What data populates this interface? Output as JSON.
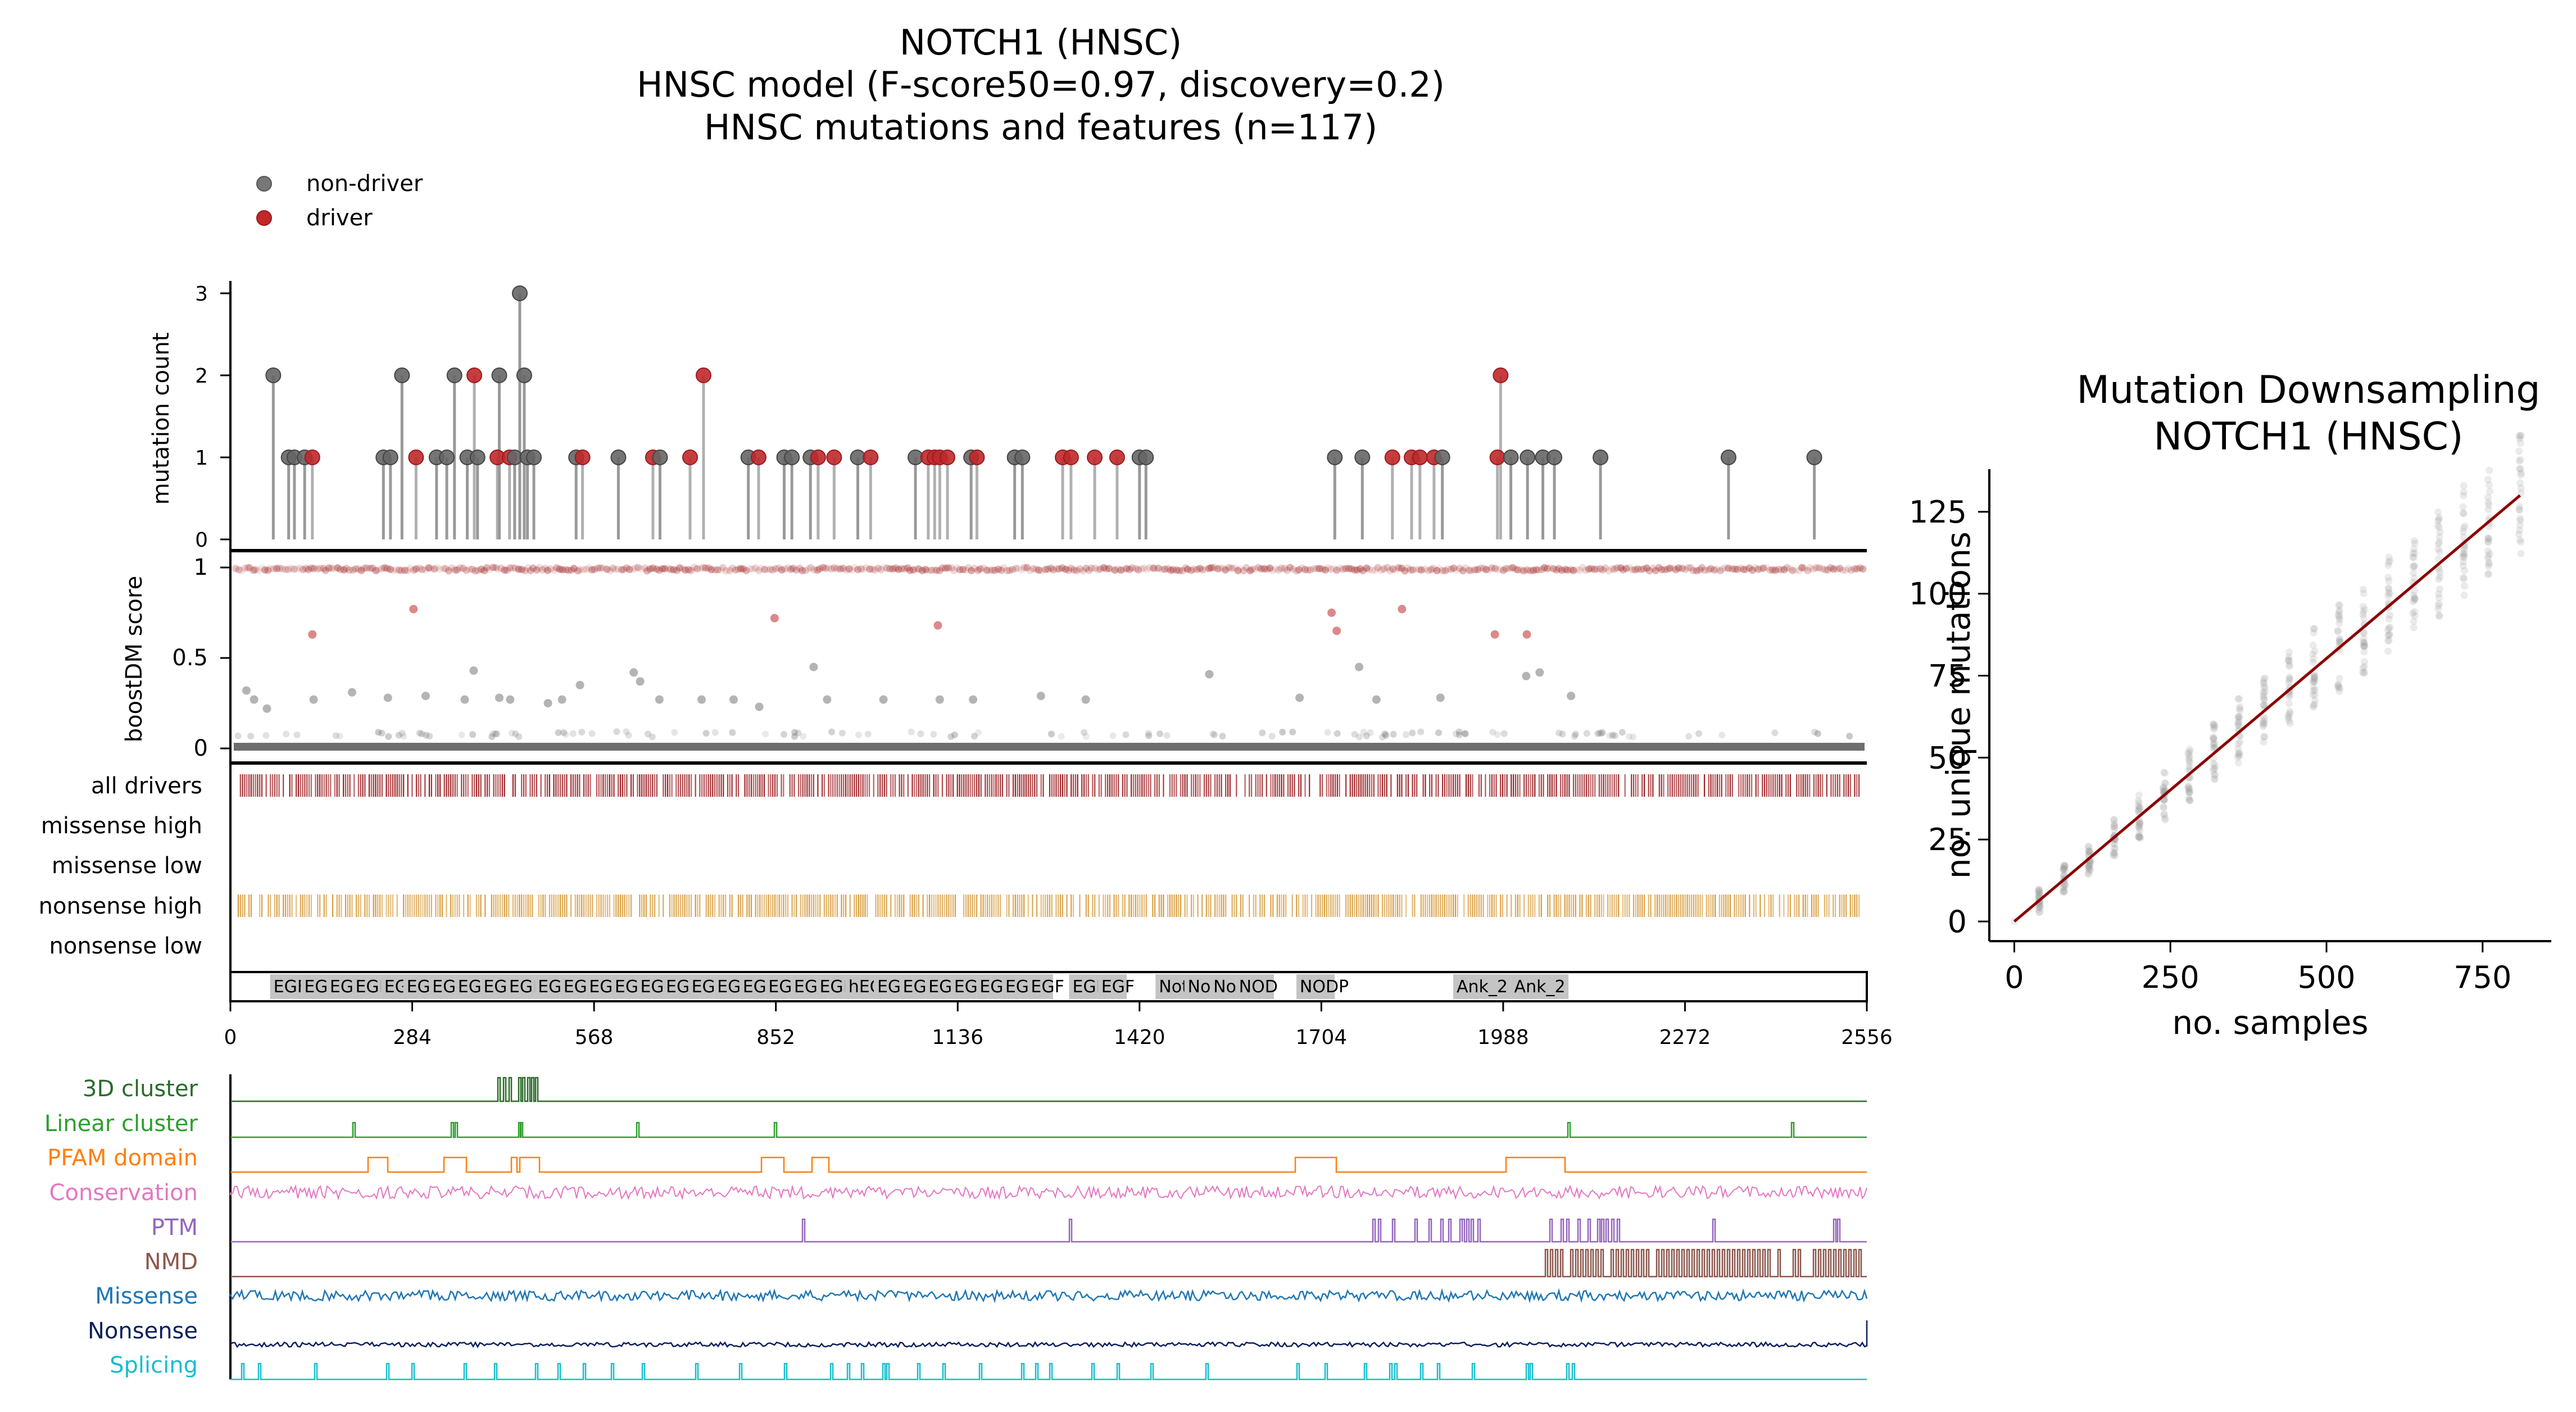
{
  "titles": {
    "line1": "NOTCH1 (HNSC)",
    "line2": "HNSC model (F-score50=0.97, discovery=0.2)",
    "line3": "HNSC mutations and features (n=117)"
  },
  "legend": [
    {
      "label": "non-driver",
      "color": "#777777"
    },
    {
      "label": "driver",
      "color": "#c0282a"
    }
  ],
  "colors": {
    "driver": "#c0282a",
    "nondriver": "#666666",
    "stem_driver": "#b0b0b0",
    "score_driver": "#a83232",
    "score_base": "#555555",
    "all_drivers": "#9b1b1e",
    "nonsense_high": "#d69a3a",
    "dom_fill": "#c4c4c4"
  },
  "chart_data": [
    {
      "type": "scatter",
      "name": "lollipop",
      "ylabel": "mutation count",
      "yticks": [
        0,
        1,
        2,
        3
      ],
      "ylim": [
        0,
        3
      ],
      "xlim": [
        0,
        2556
      ],
      "points": [
        {
          "x": 67,
          "y": 2,
          "d": 0
        },
        {
          "x": 91,
          "y": 1,
          "d": 0
        },
        {
          "x": 100,
          "y": 1,
          "d": 0
        },
        {
          "x": 116,
          "y": 1,
          "d": 0
        },
        {
          "x": 128,
          "y": 1,
          "d": 1
        },
        {
          "x": 239,
          "y": 1,
          "d": 0
        },
        {
          "x": 250,
          "y": 1,
          "d": 0
        },
        {
          "x": 268,
          "y": 2,
          "d": 0
        },
        {
          "x": 290,
          "y": 1,
          "d": 1
        },
        {
          "x": 322,
          "y": 1,
          "d": 0
        },
        {
          "x": 338,
          "y": 1,
          "d": 0
        },
        {
          "x": 350,
          "y": 2,
          "d": 0
        },
        {
          "x": 370,
          "y": 1,
          "d": 0
        },
        {
          "x": 381,
          "y": 2,
          "d": 1
        },
        {
          "x": 386,
          "y": 1,
          "d": 0
        },
        {
          "x": 417,
          "y": 1,
          "d": 1
        },
        {
          "x": 420,
          "y": 2,
          "d": 0
        },
        {
          "x": 436,
          "y": 1,
          "d": 1
        },
        {
          "x": 444,
          "y": 1,
          "d": 0
        },
        {
          "x": 452,
          "y": 3,
          "d": 0
        },
        {
          "x": 459,
          "y": 2,
          "d": 0
        },
        {
          "x": 464,
          "y": 1,
          "d": 0
        },
        {
          "x": 474,
          "y": 1,
          "d": 0
        },
        {
          "x": 540,
          "y": 1,
          "d": 0
        },
        {
          "x": 550,
          "y": 1,
          "d": 1
        },
        {
          "x": 606,
          "y": 1,
          "d": 0
        },
        {
          "x": 660,
          "y": 1,
          "d": 1
        },
        {
          "x": 671,
          "y": 1,
          "d": 0
        },
        {
          "x": 718,
          "y": 1,
          "d": 1
        },
        {
          "x": 739,
          "y": 2,
          "d": 1
        },
        {
          "x": 809,
          "y": 1,
          "d": 0
        },
        {
          "x": 825,
          "y": 1,
          "d": 1
        },
        {
          "x": 865,
          "y": 1,
          "d": 0
        },
        {
          "x": 877,
          "y": 1,
          "d": 0
        },
        {
          "x": 906,
          "y": 1,
          "d": 0
        },
        {
          "x": 918,
          "y": 1,
          "d": 1
        },
        {
          "x": 943,
          "y": 1,
          "d": 1
        },
        {
          "x": 980,
          "y": 1,
          "d": 0
        },
        {
          "x": 1000,
          "y": 1,
          "d": 1
        },
        {
          "x": 1070,
          "y": 1,
          "d": 0
        },
        {
          "x": 1090,
          "y": 1,
          "d": 1
        },
        {
          "x": 1100,
          "y": 1,
          "d": 1
        },
        {
          "x": 1108,
          "y": 1,
          "d": 1
        },
        {
          "x": 1120,
          "y": 1,
          "d": 1
        },
        {
          "x": 1157,
          "y": 1,
          "d": 0
        },
        {
          "x": 1166,
          "y": 1,
          "d": 1
        },
        {
          "x": 1225,
          "y": 1,
          "d": 0
        },
        {
          "x": 1237,
          "y": 1,
          "d": 0
        },
        {
          "x": 1300,
          "y": 1,
          "d": 1
        },
        {
          "x": 1313,
          "y": 1,
          "d": 1
        },
        {
          "x": 1350,
          "y": 1,
          "d": 1
        },
        {
          "x": 1385,
          "y": 1,
          "d": 1
        },
        {
          "x": 1420,
          "y": 1,
          "d": 0
        },
        {
          "x": 1430,
          "y": 1,
          "d": 0
        },
        {
          "x": 1725,
          "y": 1,
          "d": 0
        },
        {
          "x": 1768,
          "y": 1,
          "d": 0
        },
        {
          "x": 1815,
          "y": 1,
          "d": 1
        },
        {
          "x": 1845,
          "y": 1,
          "d": 1
        },
        {
          "x": 1858,
          "y": 1,
          "d": 1
        },
        {
          "x": 1880,
          "y": 1,
          "d": 1
        },
        {
          "x": 1893,
          "y": 1,
          "d": 0
        },
        {
          "x": 1979,
          "y": 1,
          "d": 1
        },
        {
          "x": 1984,
          "y": 2,
          "d": 1
        },
        {
          "x": 2000,
          "y": 1,
          "d": 0
        },
        {
          "x": 2026,
          "y": 1,
          "d": 0
        },
        {
          "x": 2050,
          "y": 1,
          "d": 0
        },
        {
          "x": 2068,
          "y": 1,
          "d": 0
        },
        {
          "x": 2140,
          "y": 1,
          "d": 0
        },
        {
          "x": 2340,
          "y": 1,
          "d": 0
        },
        {
          "x": 2474,
          "y": 1,
          "d": 0
        }
      ]
    },
    {
      "type": "scatter",
      "name": "boostDM",
      "ylabel": "boostDM score",
      "ylim": [
        0,
        1
      ],
      "yticks": [
        0,
        0.5,
        1
      ],
      "ytick_labels": [
        "0",
        "0.5",
        "1"
      ],
      "highlighted": [
        {
          "x": 128,
          "y": 0.63,
          "d": 1
        },
        {
          "x": 286,
          "y": 0.77,
          "d": 1
        },
        {
          "x": 850,
          "y": 0.72,
          "d": 1
        },
        {
          "x": 1105,
          "y": 0.68,
          "d": 1
        },
        {
          "x": 1720,
          "y": 0.75,
          "d": 1
        },
        {
          "x": 1728,
          "y": 0.65,
          "d": 1
        },
        {
          "x": 1830,
          "y": 0.77,
          "d": 1
        },
        {
          "x": 1975,
          "y": 0.63,
          "d": 1
        },
        {
          "x": 2025,
          "y": 0.63,
          "d": 1
        },
        {
          "x": 25,
          "y": 0.32,
          "d": 0
        },
        {
          "x": 37,
          "y": 0.27,
          "d": 0
        },
        {
          "x": 57,
          "y": 0.22,
          "d": 0
        },
        {
          "x": 130,
          "y": 0.27,
          "d": 0
        },
        {
          "x": 190,
          "y": 0.31,
          "d": 0
        },
        {
          "x": 246,
          "y": 0.28,
          "d": 0
        },
        {
          "x": 305,
          "y": 0.29,
          "d": 0
        },
        {
          "x": 366,
          "y": 0.27,
          "d": 0
        },
        {
          "x": 380,
          "y": 0.43,
          "d": 0
        },
        {
          "x": 420,
          "y": 0.28,
          "d": 0
        },
        {
          "x": 437,
          "y": 0.27,
          "d": 0
        },
        {
          "x": 496,
          "y": 0.25,
          "d": 0
        },
        {
          "x": 518,
          "y": 0.27,
          "d": 0
        },
        {
          "x": 546,
          "y": 0.35,
          "d": 0
        },
        {
          "x": 630,
          "y": 0.42,
          "d": 0
        },
        {
          "x": 640,
          "y": 0.37,
          "d": 0
        },
        {
          "x": 670,
          "y": 0.27,
          "d": 0
        },
        {
          "x": 736,
          "y": 0.27,
          "d": 0
        },
        {
          "x": 786,
          "y": 0.27,
          "d": 0
        },
        {
          "x": 826,
          "y": 0.23,
          "d": 0
        },
        {
          "x": 911,
          "y": 0.45,
          "d": 0
        },
        {
          "x": 932,
          "y": 0.27,
          "d": 0
        },
        {
          "x": 1020,
          "y": 0.27,
          "d": 0
        },
        {
          "x": 1108,
          "y": 0.27,
          "d": 0
        },
        {
          "x": 1160,
          "y": 0.27,
          "d": 0
        },
        {
          "x": 1266,
          "y": 0.29,
          "d": 0
        },
        {
          "x": 1336,
          "y": 0.27,
          "d": 0
        },
        {
          "x": 1529,
          "y": 0.41,
          "d": 0
        },
        {
          "x": 1670,
          "y": 0.28,
          "d": 0
        },
        {
          "x": 1763,
          "y": 0.45,
          "d": 0
        },
        {
          "x": 1790,
          "y": 0.27,
          "d": 0
        },
        {
          "x": 1890,
          "y": 0.28,
          "d": 0
        },
        {
          "x": 2024,
          "y": 0.4,
          "d": 0
        },
        {
          "x": 2045,
          "y": 0.42,
          "d": 0
        },
        {
          "x": 2094,
          "y": 0.29,
          "d": 0
        }
      ]
    },
    {
      "type": "heatmap",
      "name": "driver tracks",
      "tracks": [
        "all drivers",
        "missense high",
        "missense low",
        "nonsense high",
        "nonsense low"
      ]
    },
    {
      "type": "bar",
      "name": "domains",
      "xticks": [
        0,
        284,
        568,
        852,
        1136,
        1420,
        1704,
        1988,
        2272,
        2556
      ],
      "xlim": [
        0,
        2556
      ],
      "domains": [
        {
          "start": 62,
          "end": 110,
          "label": "EGF"
        },
        {
          "start": 110,
          "end": 150,
          "label": "EGF"
        },
        {
          "start": 150,
          "end": 190,
          "label": "EGF"
        },
        {
          "start": 190,
          "end": 235,
          "label": "EGF_CA"
        },
        {
          "start": 235,
          "end": 270,
          "label": "EGF"
        },
        {
          "start": 270,
          "end": 310,
          "label": "EGF"
        },
        {
          "start": 310,
          "end": 350,
          "label": "EGF"
        },
        {
          "start": 350,
          "end": 390,
          "label": "EGF_CA"
        },
        {
          "start": 390,
          "end": 430,
          "label": "EGF"
        },
        {
          "start": 430,
          "end": 475,
          "label": "EGF_CA"
        },
        {
          "start": 475,
          "end": 515,
          "label": "EGF"
        },
        {
          "start": 515,
          "end": 555,
          "label": "EGF"
        },
        {
          "start": 555,
          "end": 595,
          "label": "EGF"
        },
        {
          "start": 595,
          "end": 635,
          "label": "EGF"
        },
        {
          "start": 635,
          "end": 675,
          "label": "EGF"
        },
        {
          "start": 675,
          "end": 715,
          "label": "EGF"
        },
        {
          "start": 715,
          "end": 755,
          "label": "EGF"
        },
        {
          "start": 755,
          "end": 795,
          "label": "EGF"
        },
        {
          "start": 795,
          "end": 835,
          "label": "EGF"
        },
        {
          "start": 835,
          "end": 875,
          "label": "EGF"
        },
        {
          "start": 875,
          "end": 915,
          "label": "EGF"
        },
        {
          "start": 915,
          "end": 960,
          "label": "EGF_CA"
        },
        {
          "start": 960,
          "end": 1005,
          "label": "hEGF"
        },
        {
          "start": 1005,
          "end": 1045,
          "label": "EGF"
        },
        {
          "start": 1045,
          "end": 1085,
          "label": "EGF"
        },
        {
          "start": 1085,
          "end": 1125,
          "label": "EGF"
        },
        {
          "start": 1125,
          "end": 1165,
          "label": "EGF"
        },
        {
          "start": 1165,
          "end": 1205,
          "label": "EGF"
        },
        {
          "start": 1205,
          "end": 1245,
          "label": "EGF"
        },
        {
          "start": 1245,
          "end": 1285,
          "label": "EGF"
        },
        {
          "start": 1310,
          "end": 1355,
          "label": "EGF"
        },
        {
          "start": 1355,
          "end": 1400,
          "label": "EGF"
        },
        {
          "start": 1445,
          "end": 1490,
          "label": "Notch"
        },
        {
          "start": 1490,
          "end": 1530,
          "label": "Notch"
        },
        {
          "start": 1530,
          "end": 1570,
          "label": "Notch"
        },
        {
          "start": 1570,
          "end": 1630,
          "label": "NOD"
        },
        {
          "start": 1665,
          "end": 1725,
          "label": "NODP"
        },
        {
          "start": 1910,
          "end": 2000,
          "label": "Ank_2"
        },
        {
          "start": 2000,
          "end": 2090,
          "label": "Ank_2"
        }
      ]
    },
    {
      "type": "line",
      "name": "features",
      "tracks": [
        {
          "label": "3D cluster",
          "color": "#2a6b2a"
        },
        {
          "label": "Linear cluster",
          "color": "#2ca02c"
        },
        {
          "label": "PFAM domain",
          "color": "#ff7f0e"
        },
        {
          "label": "Conservation",
          "color": "#e377c2"
        },
        {
          "label": "PTM",
          "color": "#9467bd"
        },
        {
          "label": "NMD",
          "color": "#8c564b"
        },
        {
          "label": "Missense",
          "color": "#1f77b4"
        },
        {
          "label": "Nonsense",
          "color": "#0b1f5c"
        },
        {
          "label": "Splicing",
          "color": "#17becf"
        }
      ]
    },
    {
      "type": "scatter",
      "name": "downsampling",
      "title_line1": "Mutation Downsampling",
      "title_line2": "NOTCH1 (HNSC)",
      "xlabel": "no. samples",
      "ylabel": "no. unique mutations",
      "xlim": [
        -40,
        860
      ],
      "ylim": [
        -6,
        138
      ],
      "xticks": [
        0,
        250,
        500,
        750
      ],
      "yticks": [
        0,
        25,
        50,
        75,
        100,
        125
      ],
      "fit_line": {
        "x": [
          0,
          810
        ],
        "y": [
          0,
          130
        ]
      },
      "sample_steps": [
        0,
        40,
        80,
        120,
        160,
        200,
        240,
        280,
        320,
        360,
        400,
        440,
        480,
        520,
        560,
        600,
        640,
        680,
        720,
        760,
        810
      ]
    }
  ]
}
